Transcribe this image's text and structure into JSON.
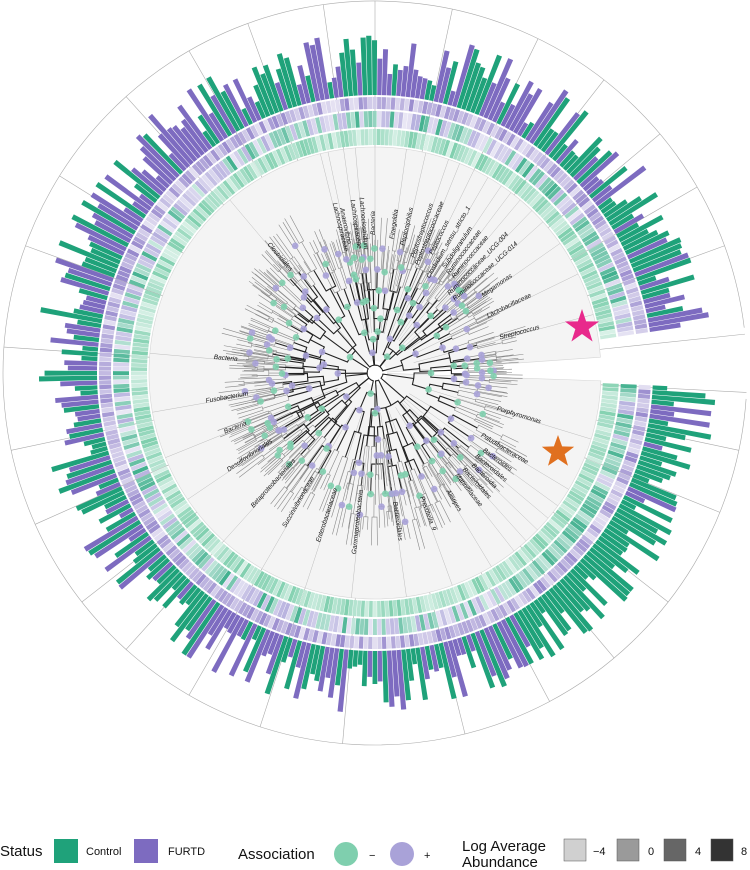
{
  "colors": {
    "control": "#1fa27a",
    "furtd": "#7d6bc0",
    "assoc_neg": "#7fcfae",
    "assoc_pos": "#a9a2d8",
    "clade_bg": "#f4f4f4",
    "star_magenta": "#e8298c",
    "star_orange": "#e0701f"
  },
  "clade_labels": [
    {
      "text": "Lachnospiraceae"
    },
    {
      "text": "Clostridiales"
    },
    {
      "text": "Anaerovibrio"
    },
    {
      "text": "Lachnospiraceae"
    },
    {
      "text": "Lachnoclostridium"
    },
    {
      "text": "Bacteria"
    },
    {
      "text": "Finegoldia"
    },
    {
      "text": "Peptoniphilus"
    },
    {
      "text": "Peptostreptococcus"
    },
    {
      "text": "Peptostreptococcaceae"
    },
    {
      "text": "Peptococcus"
    },
    {
      "text": "Clostridium_sensu_stricto_1"
    },
    {
      "text": "Subdoligranulum"
    },
    {
      "text": "Ruminococcaceae"
    },
    {
      "text": "Ruminococcaceae"
    },
    {
      "text": "Ruminococcaceae_UCG-004"
    },
    {
      "text": "Ruminococcaceae_UCG-014"
    },
    {
      "text": "Megamonas"
    },
    {
      "text": "Lactobacillaceae"
    },
    {
      "text": "Streptococcus"
    },
    {
      "text": "Porphyromonas"
    },
    {
      "text": "Paludibacteraceae"
    },
    {
      "text": "Bacteroides"
    },
    {
      "text": "Bacteroidales"
    },
    {
      "text": "Bacteroidia"
    },
    {
      "text": "Bacteroidales"
    },
    {
      "text": "Marinifilaceae"
    },
    {
      "text": "Alistipes"
    },
    {
      "text": "Prevotella_9"
    },
    {
      "text": "Bacteroidales"
    },
    {
      "text": "Gammaproteobacteria"
    },
    {
      "text": "Enterobacteriaceae"
    },
    {
      "text": "Succinivibrionaceae"
    },
    {
      "text": "Betaproteobacteriales"
    },
    {
      "text": "Desulfovibrionales"
    },
    {
      "text": "Bacteria"
    },
    {
      "text": "Fusobacterium"
    },
    {
      "text": "Bacteria"
    }
  ],
  "legend": {
    "status": {
      "title": "Status",
      "items": [
        {
          "label": "Control",
          "color": "#1fa27a"
        },
        {
          "label": "FURTD",
          "color": "#7d6bc0"
        }
      ]
    },
    "association": {
      "title": "Association",
      "items": [
        {
          "label": "−",
          "color": "#7fcfae"
        },
        {
          "label": "+",
          "color": "#a9a2d8"
        }
      ]
    },
    "abundance": {
      "title_line1": "Log Average",
      "title_line2": "Abundance",
      "items": [
        {
          "label": "−4",
          "color": "#d0d0d0"
        },
        {
          "label": "0",
          "color": "#9a9a9a"
        },
        {
          "label": "4",
          "color": "#666666"
        },
        {
          "label": "8",
          "color": "#333333"
        }
      ]
    }
  }
}
